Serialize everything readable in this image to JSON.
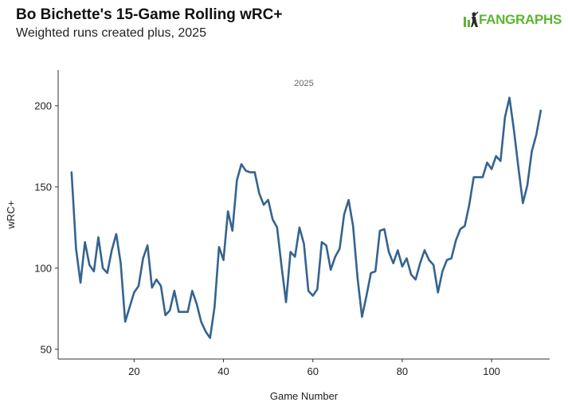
{
  "header": {
    "title": "Bo Bichette's 15-Game Rolling wRC+",
    "subtitle": "Weighted runs created plus, 2025",
    "brand": "FANGRAPHS"
  },
  "colors": {
    "line": "#35638f",
    "axis": "#333333",
    "brand": "#5cb531"
  },
  "chart_data": {
    "type": "line",
    "title": "Bo Bichette's 15-Game Rolling wRC+",
    "subtitle": "Weighted runs created plus, 2025",
    "facet_label": "2025",
    "xlabel": "Game Number",
    "ylabel": "wRC+",
    "xlim": [
      3,
      113
    ],
    "ylim": [
      44,
      222
    ],
    "x_ticks": [
      20,
      40,
      60,
      80,
      100
    ],
    "y_ticks": [
      50,
      100,
      150,
      200
    ],
    "grid": false,
    "x": [
      6,
      7,
      8,
      9,
      10,
      11,
      12,
      13,
      14,
      15,
      16,
      17,
      18,
      19,
      20,
      21,
      22,
      23,
      24,
      25,
      26,
      27,
      28,
      29,
      30,
      31,
      32,
      33,
      34,
      35,
      36,
      37,
      38,
      39,
      40,
      41,
      42,
      43,
      44,
      45,
      46,
      47,
      48,
      49,
      50,
      51,
      52,
      53,
      54,
      55,
      56,
      57,
      58,
      59,
      60,
      61,
      62,
      63,
      64,
      65,
      66,
      67,
      68,
      69,
      70,
      71,
      72,
      73,
      74,
      75,
      76,
      77,
      78,
      79,
      80,
      81,
      82,
      83,
      84,
      85,
      86,
      87,
      88,
      89,
      90,
      91,
      92,
      93,
      94,
      95,
      96,
      97,
      98,
      99,
      100,
      101,
      102,
      103,
      104,
      105,
      106,
      107,
      108,
      109,
      110,
      111
    ],
    "y": [
      159,
      112,
      91,
      116,
      102,
      98,
      119,
      100,
      97,
      111,
      121,
      103,
      67,
      76,
      85,
      89,
      106,
      114,
      88,
      93,
      89,
      71,
      74,
      86,
      73,
      73,
      73,
      86,
      78,
      67,
      61,
      57,
      76,
      113,
      105,
      135,
      123,
      154,
      164,
      160,
      159,
      159,
      146,
      139,
      142,
      130,
      125,
      101,
      79,
      110,
      107,
      125,
      115,
      86,
      83,
      87,
      116,
      114,
      99,
      107,
      112,
      133,
      142,
      126,
      94,
      70,
      83,
      97,
      98,
      123,
      124,
      110,
      103,
      111,
      101,
      106,
      96,
      93,
      103,
      111,
      105,
      102,
      85,
      98,
      105,
      106,
      117,
      124,
      126,
      139,
      156,
      156,
      156,
      165,
      161,
      169,
      166,
      193,
      205,
      185,
      162,
      140,
      151,
      172,
      182,
      197
    ]
  }
}
